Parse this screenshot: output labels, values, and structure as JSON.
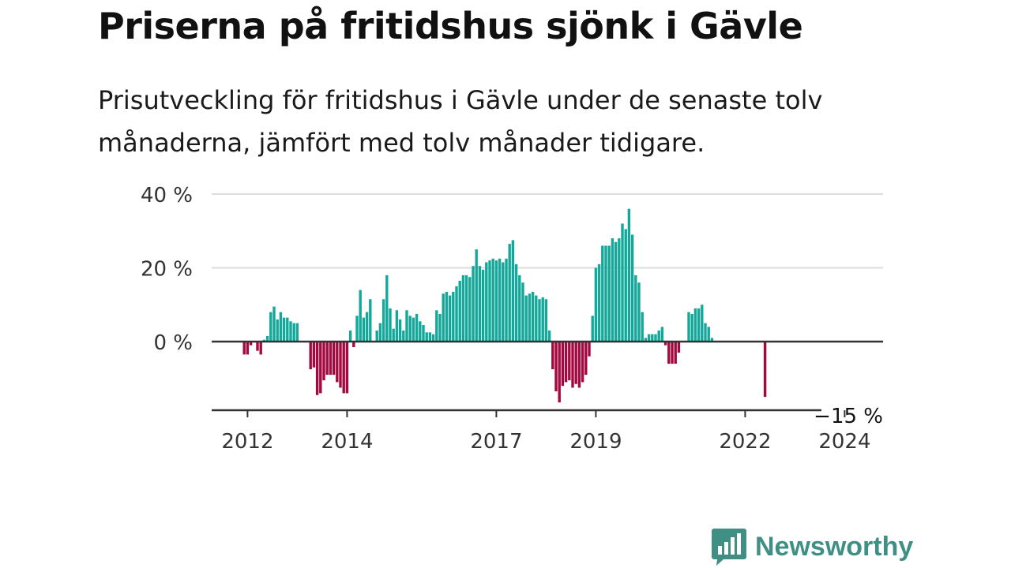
{
  "title": "Priserna på fritidshus sjönk i Gävle",
  "subtitle": "Prisutveckling för fritidshus i Gävle under de senaste tolv månaderna, jämfört med tolv månader tidigare.",
  "brand": {
    "name": "Newsworthy",
    "color": "#3f8f85",
    "icon": "bar-chart-speech-bubble-icon"
  },
  "colors": {
    "positive": "#14a89a",
    "negative": "#a3093f",
    "axis": "#333333",
    "grid": "#dddddd"
  },
  "chart_data": {
    "type": "bar",
    "title": "",
    "xlabel": "",
    "ylabel": "",
    "ylim": [
      -19,
      40
    ],
    "y_ticks": [
      {
        "value": 40,
        "label": "40 %"
      },
      {
        "value": 20,
        "label": "20 %"
      },
      {
        "value": 0,
        "label": "0 %"
      }
    ],
    "x_ticks": [
      {
        "index": 1,
        "label": "2012"
      },
      {
        "index": 31,
        "label": "2014"
      },
      {
        "index": 76,
        "label": "2017"
      },
      {
        "index": 106,
        "label": "2019"
      },
      {
        "index": 151,
        "label": "2022"
      },
      {
        "index": 181,
        "label": "2024"
      }
    ],
    "grid": true,
    "last_value_label": "−15 %",
    "values": [
      -3.5,
      -3.5,
      -1,
      0,
      -2.5,
      -3.5,
      0.5,
      1.5,
      8,
      9.5,
      6,
      8,
      6.5,
      6.5,
      5.5,
      5,
      5,
      0,
      0,
      0,
      -7.5,
      -7,
      -14.5,
      -14,
      -10.5,
      -9,
      -9,
      -9,
      -11,
      -12.5,
      -14,
      -14,
      3,
      -1.5,
      7,
      14,
      6.5,
      8,
      11.5,
      0,
      3,
      5,
      11.5,
      18,
      9,
      3.5,
      8.5,
      6,
      3,
      8.5,
      7,
      6.5,
      7.5,
      5.5,
      4.5,
      2.5,
      2.5,
      2,
      8.5,
      7.5,
      13,
      13.5,
      12.5,
      13.5,
      15,
      16.5,
      18,
      18,
      17.5,
      20.5,
      25,
      20.5,
      19.5,
      21.5,
      22,
      22.5,
      22,
      22.5,
      21.5,
      22.5,
      26.5,
      27.5,
      21,
      18,
      16,
      12.5,
      13,
      13.5,
      12.5,
      11.5,
      12,
      11.5,
      3,
      -7.5,
      -13.5,
      -16.5,
      -12,
      -11,
      -10.5,
      -12.5,
      -11.5,
      -12.5,
      -11,
      -9,
      -4,
      7,
      20,
      21,
      26,
      26,
      26,
      28,
      27,
      28,
      32,
      30.5,
      36,
      29,
      18,
      16,
      8,
      1,
      2,
      2,
      2,
      3,
      4,
      -1,
      -6,
      -6,
      -6,
      -3,
      0,
      0,
      8,
      7.5,
      9,
      9,
      10,
      5,
      4,
      1,
      0,
      0,
      0,
      0,
      0,
      0,
      0,
      0,
      0,
      0,
      0,
      0,
      0,
      0,
      0,
      -15
    ]
  }
}
